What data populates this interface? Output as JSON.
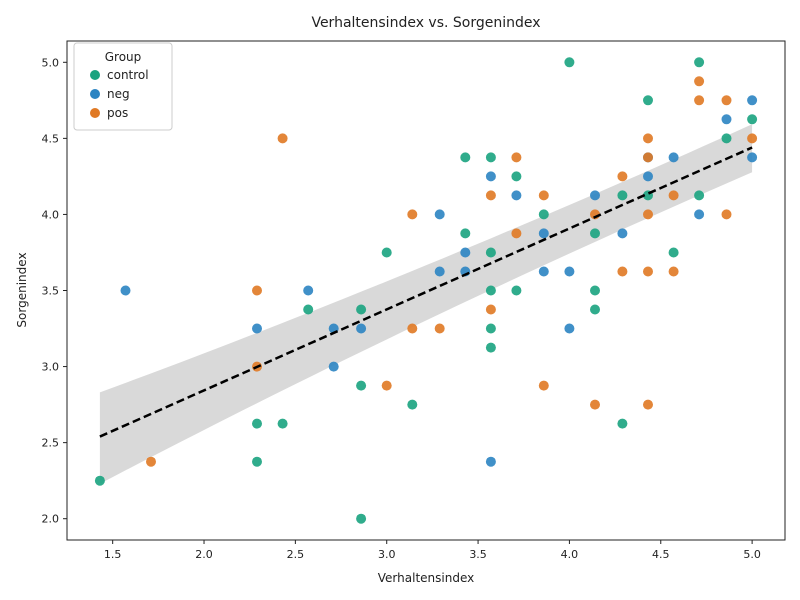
{
  "chart_data": {
    "type": "scatter",
    "title": "Verhaltensindex vs. Sorgenindex",
    "xlabel": "Verhaltensindex",
    "ylabel": "Sorgenindex",
    "xlim": [
      1.25,
      5.18
    ],
    "ylim": [
      1.86,
      5.14
    ],
    "xticks": [
      "1.5",
      "2.0",
      "2.5",
      "3.0",
      "3.5",
      "4.0",
      "4.5",
      "5.0"
    ],
    "yticks": [
      "2.0",
      "2.5",
      "3.0",
      "3.5",
      "4.0",
      "4.5",
      "5.0"
    ],
    "grid": false,
    "legend": {
      "title": "Group",
      "placement": "top-left"
    },
    "colors": {
      "control": "#1aa37f",
      "neg": "#2b84c2",
      "pos": "#e07924",
      "regression": "#000000",
      "ci_band": "#d9d9d9"
    },
    "regression": {
      "x": [
        1.43,
        5.0
      ],
      "y": [
        2.54,
        4.44
      ],
      "ci_low": [
        2.23,
        4.28
      ],
      "ci_high": [
        2.83,
        4.59
      ]
    },
    "series": [
      {
        "name": "control",
        "points": [
          [
            1.43,
            2.25
          ],
          [
            2.29,
            2.625
          ],
          [
            2.29,
            2.375
          ],
          [
            2.43,
            2.625
          ],
          [
            2.57,
            3.375
          ],
          [
            2.86,
            3.375
          ],
          [
            2.86,
            2.875
          ],
          [
            2.86,
            2.0
          ],
          [
            3.0,
            3.75
          ],
          [
            3.14,
            2.75
          ],
          [
            3.43,
            4.375
          ],
          [
            3.43,
            3.875
          ],
          [
            3.57,
            4.375
          ],
          [
            3.57,
            3.75
          ],
          [
            3.57,
            3.5
          ],
          [
            3.57,
            3.25
          ],
          [
            3.57,
            3.125
          ],
          [
            3.71,
            4.25
          ],
          [
            3.71,
            3.5
          ],
          [
            3.86,
            4.0
          ],
          [
            4.0,
            5.0
          ],
          [
            4.14,
            3.875
          ],
          [
            4.14,
            3.5
          ],
          [
            4.14,
            3.375
          ],
          [
            4.29,
            4.125
          ],
          [
            4.29,
            2.625
          ],
          [
            4.43,
            4.75
          ],
          [
            4.43,
            4.125
          ],
          [
            4.57,
            3.75
          ],
          [
            4.71,
            5.0
          ],
          [
            4.71,
            4.125
          ],
          [
            4.86,
            4.5
          ],
          [
            5.0,
            4.625
          ]
        ]
      },
      {
        "name": "neg",
        "points": [
          [
            1.57,
            3.5
          ],
          [
            2.29,
            3.25
          ],
          [
            2.57,
            3.5
          ],
          [
            2.71,
            3.25
          ],
          [
            2.71,
            3.0
          ],
          [
            2.86,
            3.25
          ],
          [
            3.29,
            4.0
          ],
          [
            3.29,
            3.625
          ],
          [
            3.43,
            3.75
          ],
          [
            3.43,
            3.625
          ],
          [
            3.57,
            4.25
          ],
          [
            3.57,
            2.375
          ],
          [
            3.71,
            4.125
          ],
          [
            3.86,
            3.875
          ],
          [
            3.86,
            3.625
          ],
          [
            4.0,
            3.625
          ],
          [
            4.0,
            3.25
          ],
          [
            4.14,
            4.125
          ],
          [
            4.29,
            3.875
          ],
          [
            4.43,
            4.375
          ],
          [
            4.43,
            4.25
          ],
          [
            4.57,
            4.375
          ],
          [
            4.71,
            4.0
          ],
          [
            4.86,
            4.625
          ],
          [
            5.0,
            4.75
          ],
          [
            5.0,
            4.375
          ]
        ]
      },
      {
        "name": "pos",
        "points": [
          [
            1.71,
            2.375
          ],
          [
            2.29,
            3.5
          ],
          [
            2.29,
            3.0
          ],
          [
            2.43,
            4.5
          ],
          [
            3.0,
            2.875
          ],
          [
            3.14,
            4.0
          ],
          [
            3.14,
            3.25
          ],
          [
            3.29,
            3.25
          ],
          [
            3.57,
            4.125
          ],
          [
            3.57,
            3.375
          ],
          [
            3.71,
            4.375
          ],
          [
            3.71,
            3.875
          ],
          [
            3.86,
            4.125
          ],
          [
            3.86,
            2.875
          ],
          [
            4.14,
            4.0
          ],
          [
            4.14,
            2.75
          ],
          [
            4.29,
            4.25
          ],
          [
            4.29,
            3.625
          ],
          [
            4.43,
            4.5
          ],
          [
            4.43,
            4.375
          ],
          [
            4.43,
            4.0
          ],
          [
            4.43,
            3.625
          ],
          [
            4.43,
            2.75
          ],
          [
            4.57,
            4.125
          ],
          [
            4.57,
            3.625
          ],
          [
            4.71,
            4.875
          ],
          [
            4.71,
            4.75
          ],
          [
            4.86,
            4.75
          ],
          [
            4.86,
            4.0
          ],
          [
            5.0,
            4.5
          ]
        ]
      }
    ]
  }
}
